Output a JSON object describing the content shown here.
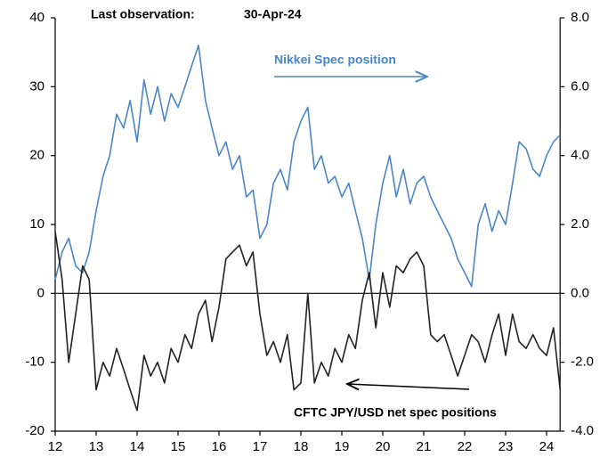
{
  "chart_data": {
    "type": "line",
    "annotations": [
      "Last observation:",
      "30-Apr-24",
      "Nikkei Spec position",
      "CFTC JPY/USD net spec positions"
    ],
    "x": [
      12.0,
      12.17,
      12.33,
      12.5,
      12.67,
      12.83,
      13.0,
      13.17,
      13.33,
      13.5,
      13.67,
      13.83,
      14.0,
      14.17,
      14.33,
      14.5,
      14.67,
      14.83,
      15.0,
      15.17,
      15.33,
      15.5,
      15.67,
      15.83,
      16.0,
      16.17,
      16.33,
      16.5,
      16.67,
      16.83,
      17.0,
      17.17,
      17.33,
      17.5,
      17.67,
      17.83,
      18.0,
      18.17,
      18.33,
      18.5,
      18.67,
      18.83,
      19.0,
      19.17,
      19.33,
      19.5,
      19.67,
      19.83,
      20.0,
      20.17,
      20.33,
      20.5,
      20.67,
      20.83,
      21.0,
      21.17,
      21.33,
      21.5,
      21.67,
      21.83,
      22.0,
      22.17,
      22.33,
      22.5,
      22.67,
      22.83,
      23.0,
      23.17,
      23.33,
      23.5,
      23.67,
      23.83,
      24.0,
      24.17,
      24.33
    ],
    "xlim": [
      12,
      24.33
    ],
    "xticks": [
      12,
      13,
      14,
      15,
      16,
      17,
      18,
      19,
      20,
      21,
      22,
      23,
      24
    ],
    "ylim": [
      -20,
      40
    ],
    "yticks": [
      -20,
      -10,
      0,
      10,
      20,
      30,
      40
    ],
    "y2lim": [
      -4,
      8
    ],
    "y2ticks": [
      {
        "value": -4,
        "label": "-4.0"
      },
      {
        "value": -2,
        "label": "-2.0"
      },
      {
        "value": 0,
        "label": "0.0"
      },
      {
        "value": 2,
        "label": "2.0"
      },
      {
        "value": 4,
        "label": "4.0"
      },
      {
        "value": 6,
        "label": "6.0"
      },
      {
        "value": 8,
        "label": "8.0"
      }
    ],
    "series": [
      {
        "color": "#4a86c5",
        "axis": "y2",
        "values": [
          0.4,
          1.2,
          1.6,
          0.8,
          0.6,
          1.2,
          2.4,
          3.4,
          4.0,
          5.2,
          4.8,
          5.6,
          4.4,
          6.2,
          5.2,
          6.0,
          5.0,
          5.8,
          5.4,
          6.0,
          6.6,
          7.2,
          5.6,
          4.8,
          4.0,
          4.4,
          3.6,
          4.0,
          2.8,
          3.0,
          1.6,
          2.0,
          3.2,
          3.6,
          3.0,
          4.4,
          5.0,
          5.4,
          3.6,
          4.0,
          3.2,
          3.4,
          2.8,
          3.2,
          2.4,
          1.6,
          0.4,
          2.0,
          3.2,
          4.0,
          2.8,
          3.6,
          2.6,
          3.2,
          3.4,
          2.8,
          2.4,
          2.0,
          1.6,
          1.0,
          0.6,
          0.2,
          2.0,
          2.6,
          1.8,
          2.4,
          2.0,
          3.2,
          4.4,
          4.2,
          3.6,
          3.4,
          4.0,
          4.4,
          4.6
        ]
      },
      {
        "color": "#222222",
        "values": [
          9,
          2,
          -10,
          -3,
          4,
          2,
          -14,
          -10,
          -12,
          -8,
          -11,
          -14,
          -17,
          -9,
          -12,
          -10,
          -13,
          -8,
          -10,
          -6,
          -8,
          -3,
          -1,
          -7,
          -2,
          5,
          6,
          7,
          4,
          6,
          -3,
          -9,
          -7,
          -10,
          -6,
          -14,
          -13,
          0,
          -13,
          -10,
          -12,
          -8,
          -10,
          -6,
          -8,
          -1,
          3,
          -5,
          3,
          -2,
          4,
          3,
          5,
          6,
          4,
          -6,
          -7,
          -6,
          -9,
          -12,
          -9,
          -6,
          -7,
          -10,
          -6,
          -3,
          -9,
          -3,
          -7,
          -8,
          -6,
          -8,
          -9,
          -5,
          -14
        ]
      }
    ]
  }
}
